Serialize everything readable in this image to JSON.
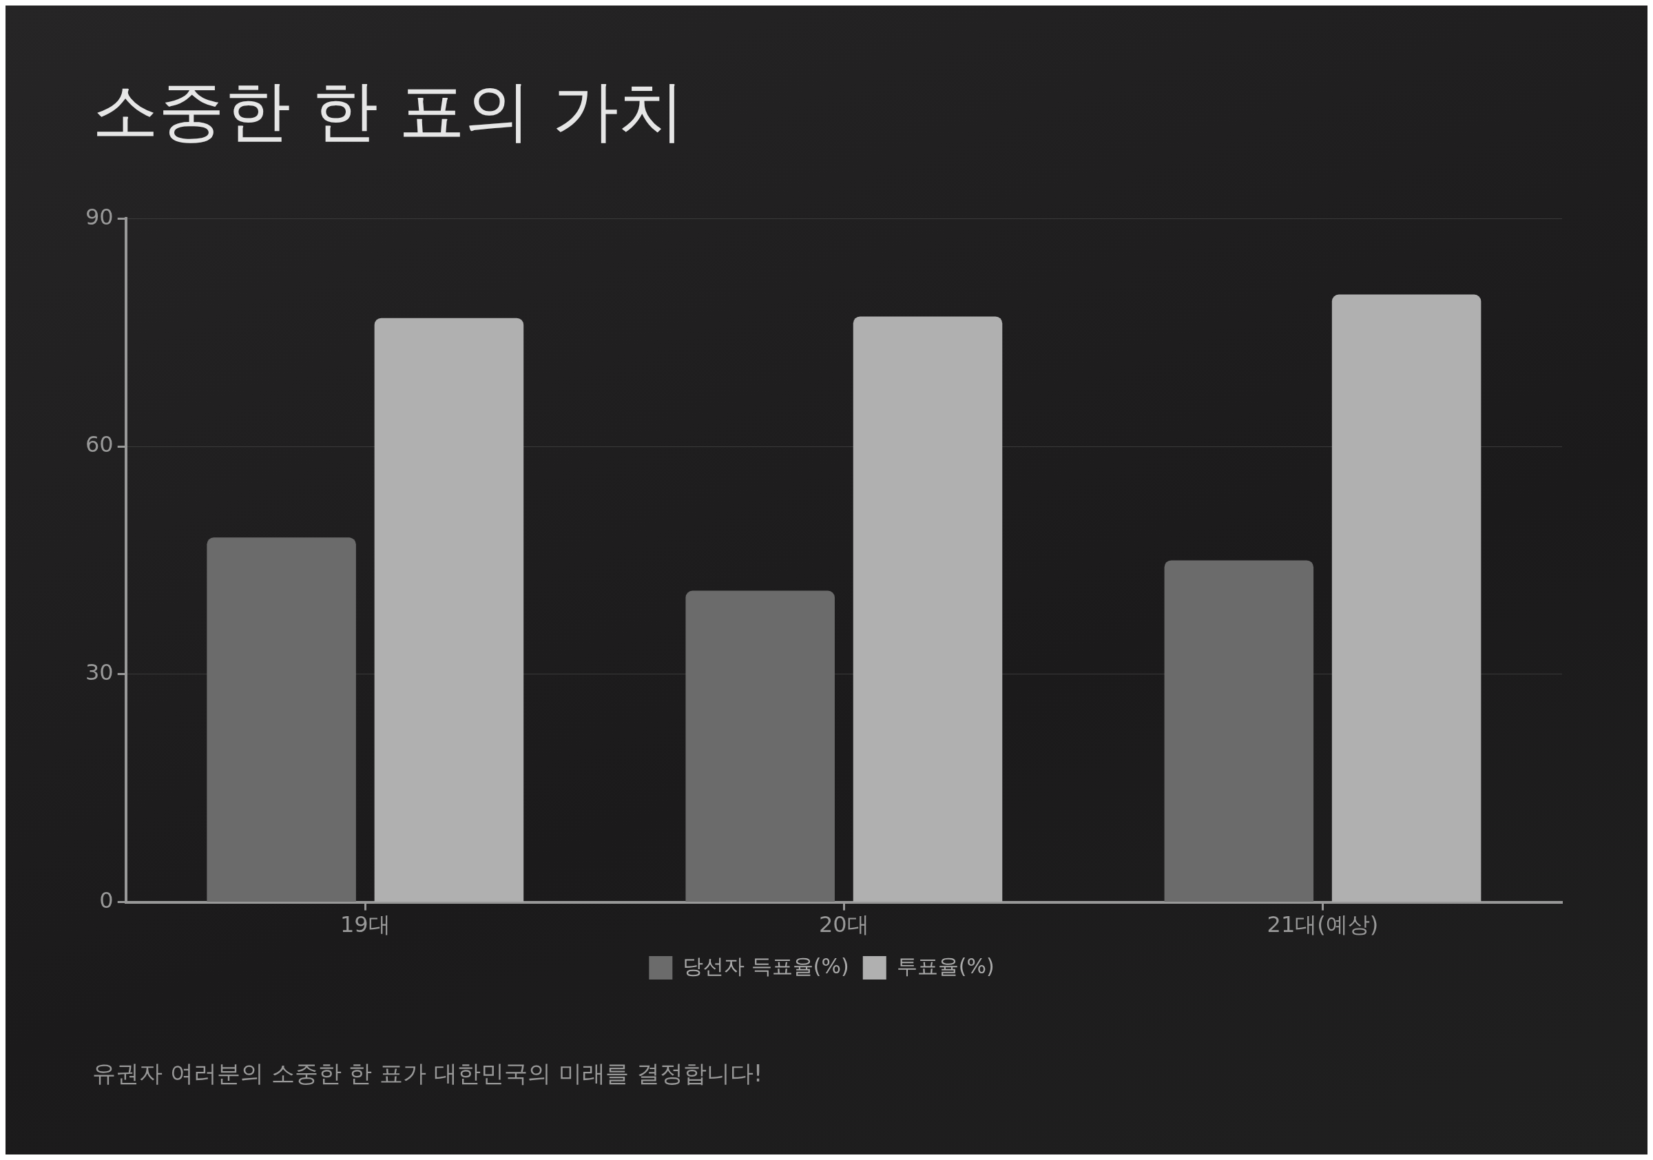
{
  "chart_data": {
    "type": "bar",
    "title": "소중한 한 표의 가치",
    "categories": [
      "19대",
      "20대",
      "21대(예상)"
    ],
    "series": [
      {
        "name": "당선자 득표율(%)",
        "color": "#6b6b6b",
        "values": [
          48,
          41,
          45
        ]
      },
      {
        "name": "투표율(%)",
        "color": "#b0b0b0",
        "values": [
          76.9,
          77.1,
          80
        ]
      }
    ],
    "ylim": [
      0,
      90
    ],
    "yticks": [
      0,
      30,
      60,
      90
    ],
    "grid": "y",
    "legend": "bottom",
    "annotations": [
      "유권자 여러분의 소중한 한 표가 대한민국의 미래를 결정합니다!"
    ]
  }
}
